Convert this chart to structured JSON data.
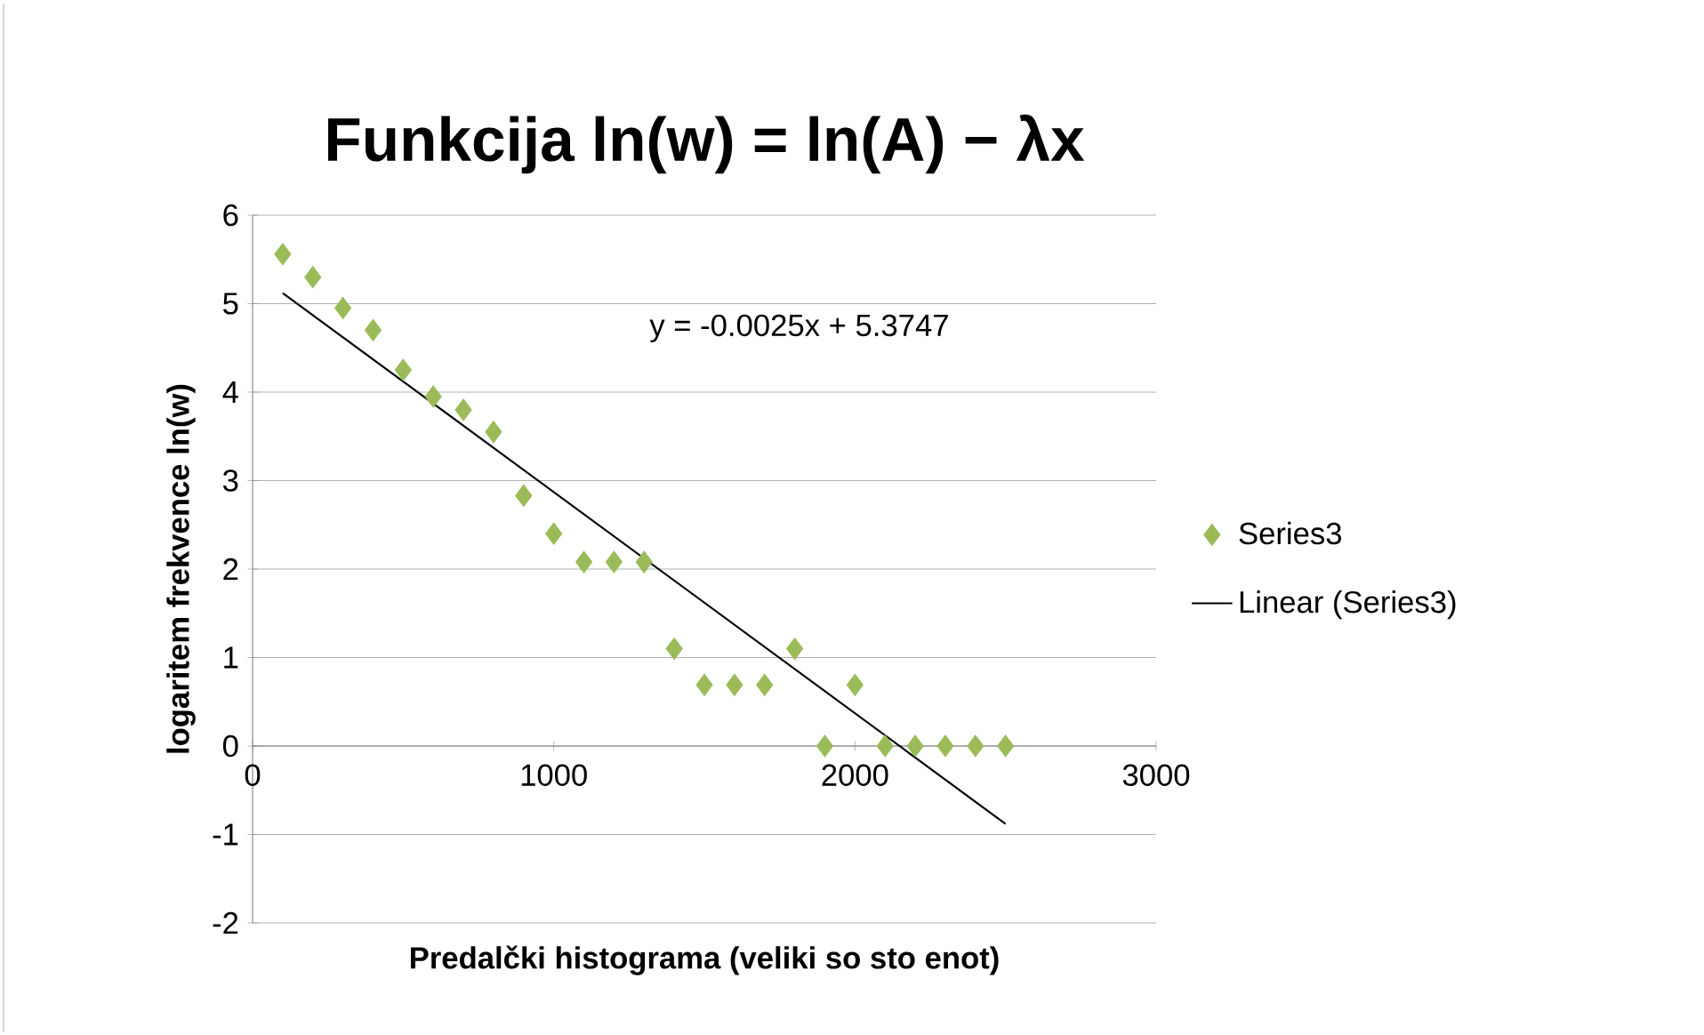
{
  "chart_data": {
    "type": "scatter",
    "title": "Funkcija ln(w) = ln(A) − λx",
    "xlabel": "Predalčki histograma  (veliki so sto enot)",
    "ylabel": "logaritem frekvence ln(w)",
    "x": [
      100,
      200,
      300,
      400,
      500,
      600,
      700,
      800,
      900,
      1000,
      1100,
      1200,
      1300,
      1400,
      1500,
      1600,
      1700,
      1800,
      1900,
      2000,
      2100,
      2200,
      2300,
      2400,
      2500
    ],
    "series": [
      {
        "name": "Series3",
        "color": "#9bbb59",
        "values": [
          5.56,
          5.3,
          4.95,
          4.7,
          4.25,
          3.95,
          3.8,
          3.55,
          2.83,
          2.4,
          2.08,
          2.08,
          2.08,
          1.1,
          0.69,
          0.69,
          0.69,
          1.1,
          0,
          0.69,
          0,
          0,
          0,
          0,
          0
        ]
      },
      {
        "name": "Linear (Series3)",
        "type": "line",
        "color": "#000000",
        "marker": "none",
        "x": [
          100,
          2500
        ],
        "values": [
          5.12,
          -0.88
        ]
      }
    ],
    "annotations": [
      "y = -0.0025x + 5.3747"
    ],
    "xlim": [
      0,
      3000
    ],
    "xticks": [
      0,
      1000,
      2000,
      3000
    ],
    "ylim": [
      -2,
      6
    ],
    "yticks": [
      -2,
      -1,
      0,
      1,
      2,
      3,
      4,
      5,
      6
    ],
    "grid": "y",
    "legend": "right",
    "marker": "diamond"
  }
}
